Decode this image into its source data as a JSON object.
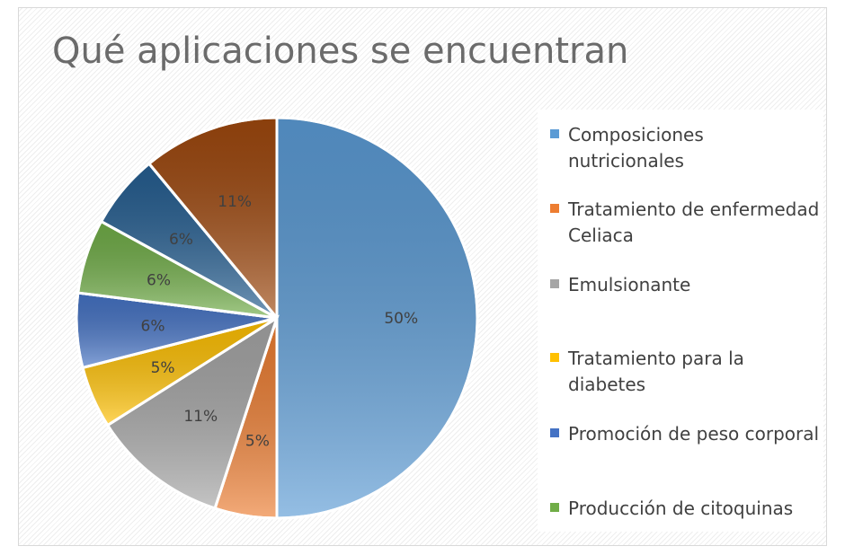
{
  "chart_data": {
    "type": "pie",
    "title": "Qué aplicaciones se encuentran",
    "slices": [
      {
        "label": "Composiciones nutricionales",
        "value": 50,
        "data_label": "50%",
        "color": "#5b9bd5"
      },
      {
        "label": "Tratamiento de enfermedad Celiaca",
        "value": 5,
        "data_label": "5%",
        "color": "#ed7d31"
      },
      {
        "label": "Emulsionante",
        "value": 11,
        "data_label": "11%",
        "color": "#a5a5a5"
      },
      {
        "label": "Tratamiento para la diabetes",
        "value": 5,
        "data_label": "5%",
        "color": "#ffc000"
      },
      {
        "label": "Promoción de peso corporal",
        "value": 6,
        "data_label": "6%",
        "color": "#4472c4"
      },
      {
        "label": "Producción de citoquinas",
        "value": 6,
        "data_label": "6%",
        "color": "#70ad47"
      },
      {
        "label": "",
        "value": 6,
        "data_label": "6%",
        "color": "#255e91"
      },
      {
        "label": "",
        "value": 11,
        "data_label": "11%",
        "color": "#9e480e"
      }
    ],
    "legend_position": "right",
    "legend_entries": [
      "Composiciones nutricionales",
      "Tratamiento de enfermedad Celiaca",
      "Emulsionante",
      "Tratamiento para la diabetes",
      "Promoción de peso corporal",
      "Producción de citoquinas"
    ],
    "legend_colors": [
      "#5b9bd5",
      "#ed7d31",
      "#a5a5a5",
      "#ffc000",
      "#4472c4",
      "#70ad47"
    ]
  }
}
